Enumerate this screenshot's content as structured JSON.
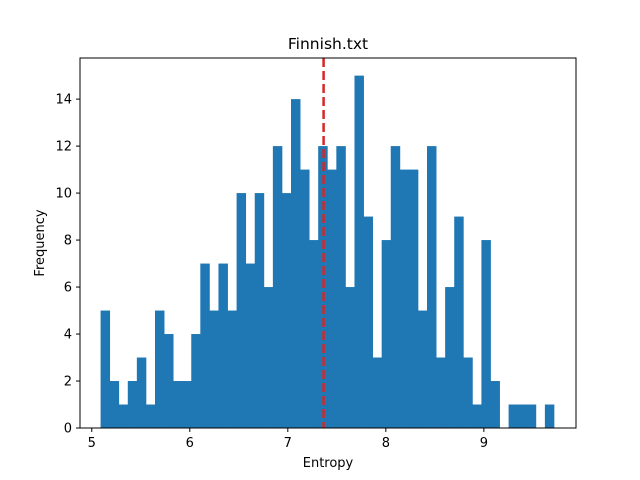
{
  "chart_data": {
    "type": "bar",
    "title": "Finnish.txt",
    "xlabel": "Entropy",
    "ylabel": "Frequency",
    "xlim": [
      4.88,
      9.94
    ],
    "ylim": [
      0,
      15.75
    ],
    "xticks": [
      5,
      6,
      7,
      8,
      9
    ],
    "yticks": [
      0,
      2,
      4,
      6,
      8,
      10,
      12,
      14
    ],
    "bins": {
      "start": 5.09,
      "width": 0.0925,
      "counts": [
        5,
        2,
        1,
        2,
        3,
        1,
        5,
        4,
        2,
        2,
        4,
        7,
        5,
        7,
        5,
        10,
        7,
        10,
        6,
        12,
        10,
        14,
        11,
        8,
        12,
        11,
        12,
        6,
        15,
        9,
        3,
        8,
        12,
        11,
        11,
        5,
        12,
        3,
        6,
        9,
        3,
        1,
        8,
        2,
        0,
        1,
        1,
        1,
        0,
        1
      ]
    },
    "bar_color": "#1f77b4",
    "reference_line": {
      "x": 7.365,
      "style": "dashed",
      "color": "#d62728"
    },
    "grid": false,
    "legend": "none"
  }
}
